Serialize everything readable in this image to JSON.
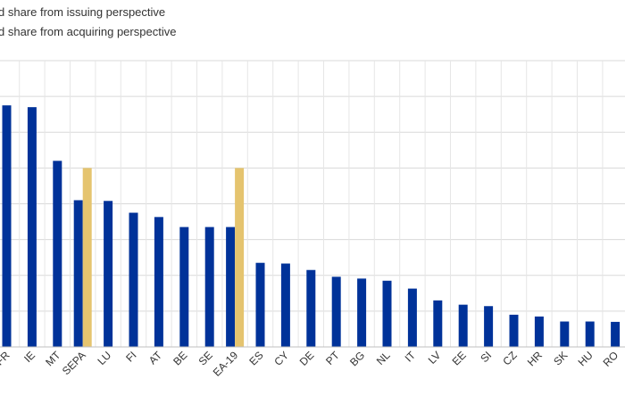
{
  "chart_data": {
    "type": "bar",
    "title": "",
    "xlabel": "",
    "ylabel": "",
    "ylim": [
      0,
      80
    ],
    "grid": true,
    "legend_position": "top-left",
    "categories": [
      "FR",
      "IE",
      "MT",
      "SEPA",
      "LU",
      "FI",
      "AT",
      "BE",
      "SE",
      "EA-19",
      "ES",
      "CY",
      "DE",
      "PT",
      "BG",
      "NL",
      "IT",
      "LV",
      "EE",
      "SI",
      "CZ",
      "HR",
      "SK",
      "HU",
      "RO"
    ],
    "series": [
      {
        "name": "d share from issuing perspective",
        "color": "#003299",
        "values": [
          67.5,
          67,
          52,
          41,
          40.8,
          37.5,
          36.3,
          33.5,
          33.5,
          33.5,
          23.5,
          23.3,
          21.5,
          19.6,
          19.1,
          18.5,
          16.3,
          13,
          11.8,
          11.4,
          9,
          8.5,
          7.1,
          7.1,
          7.0
        ]
      },
      {
        "name": "d share from acquiring perspective",
        "color": "#E5C46F",
        "values": [
          null,
          null,
          null,
          50,
          null,
          null,
          null,
          null,
          null,
          50,
          null,
          null,
          null,
          null,
          null,
          null,
          null,
          null,
          null,
          null,
          null,
          null,
          null,
          null,
          null
        ]
      }
    ]
  }
}
